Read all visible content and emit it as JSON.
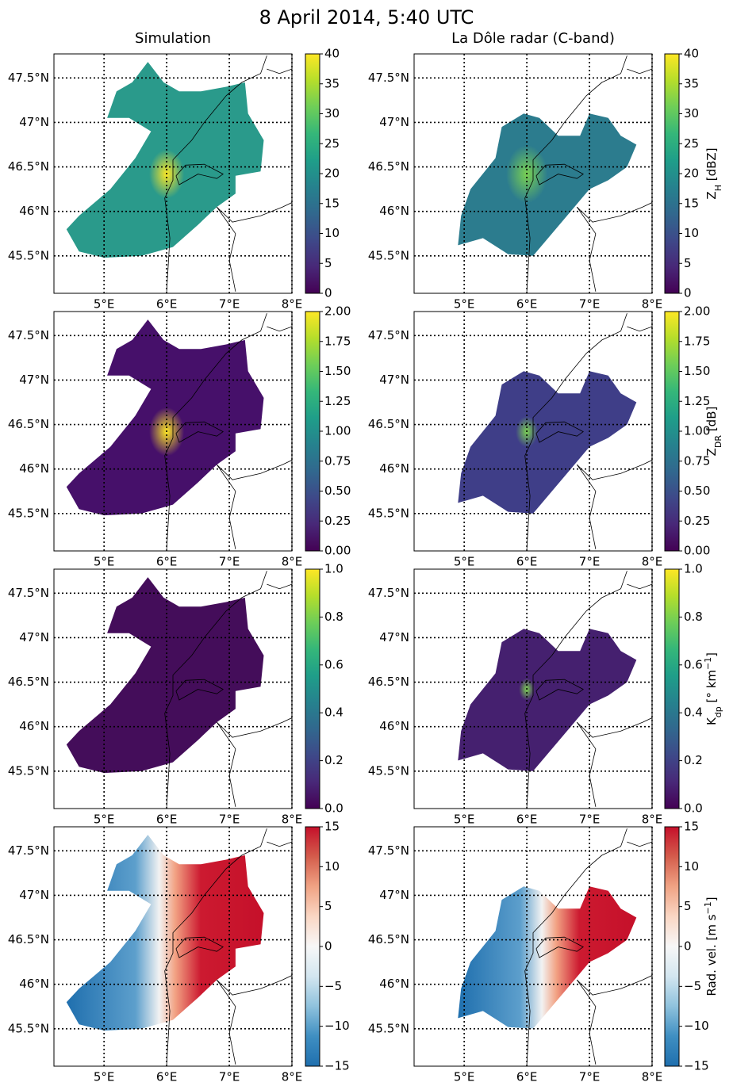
{
  "figure": {
    "title": "8 April 2014, 5:40 UTC"
  },
  "chart_data": [
    {
      "type": "map",
      "title": "Simulation",
      "xlim": [
        4.2,
        8.0
      ],
      "ylim": [
        45.08,
        47.77
      ],
      "grid": true,
      "xticks": [
        {
          "value": 5,
          "label": "5°E"
        },
        {
          "value": 6,
          "label": "6°E"
        },
        {
          "value": 7,
          "label": "7°E"
        },
        {
          "value": 8,
          "label": "8°E"
        }
      ],
      "yticks": [
        {
          "value": 45.5,
          "label": "45.5°N"
        },
        {
          "value": 46,
          "label": "46°N"
        },
        {
          "value": 46.5,
          "label": "46.5°N"
        },
        {
          "value": 47,
          "label": "47°N"
        },
        {
          "value": 47.5,
          "label": "47.5°N"
        }
      ],
      "colorbar": {
        "colormap": "viridis",
        "lim": [
          0,
          40
        ],
        "ticks": [
          0,
          5,
          10,
          15,
          20,
          25,
          30,
          35,
          40
        ]
      }
    },
    {
      "type": "map",
      "title": "La Dôle radar (C-band)",
      "xlim": [
        4.2,
        8.0
      ],
      "ylim": [
        45.08,
        47.77
      ],
      "grid": true,
      "xticks": [
        {
          "value": 5,
          "label": "5°E"
        },
        {
          "value": 6,
          "label": "6°E"
        },
        {
          "value": 7,
          "label": "7°E"
        },
        {
          "value": 8,
          "label": "8°E"
        }
      ],
      "yticks": [
        {
          "value": 45.5,
          "label": "45.5°N"
        },
        {
          "value": 46,
          "label": "46°N"
        },
        {
          "value": 46.5,
          "label": "46.5°N"
        },
        {
          "value": 47,
          "label": "47°N"
        },
        {
          "value": 47.5,
          "label": "47.5°N"
        }
      ],
      "colorbar": {
        "colormap": "viridis",
        "lim": [
          0,
          40
        ],
        "ticks": [
          0,
          5,
          10,
          15,
          20,
          25,
          30,
          35,
          40
        ],
        "label": [
          {
            "text": "Z"
          },
          {
            "text": "H",
            "sub": true
          },
          {
            "text": " [dBZ]"
          }
        ]
      }
    },
    {
      "type": "map",
      "xlim": [
        4.2,
        8.0
      ],
      "ylim": [
        45.08,
        47.77
      ],
      "grid": true,
      "xticks": [
        {
          "value": 5,
          "label": "5°E"
        },
        {
          "value": 6,
          "label": "6°E"
        },
        {
          "value": 7,
          "label": "7°E"
        },
        {
          "value": 8,
          "label": "8°E"
        }
      ],
      "yticks": [
        {
          "value": 45.5,
          "label": "45.5°N"
        },
        {
          "value": 46,
          "label": "46°N"
        },
        {
          "value": 46.5,
          "label": "46.5°N"
        },
        {
          "value": 47,
          "label": "47°N"
        },
        {
          "value": 47.5,
          "label": "47.5°N"
        }
      ],
      "colorbar": {
        "colormap": "viridis",
        "lim": [
          0,
          2
        ],
        "ticks": [
          {
            "value": 0,
            "label": "0.00"
          },
          {
            "value": 0.25,
            "label": "0.25"
          },
          {
            "value": 0.5,
            "label": "0.50"
          },
          {
            "value": 0.75,
            "label": "0.75"
          },
          {
            "value": 1,
            "label": "1.00"
          },
          {
            "value": 1.25,
            "label": "1.25"
          },
          {
            "value": 1.5,
            "label": "1.50"
          },
          {
            "value": 1.75,
            "label": "1.75"
          },
          {
            "value": 2,
            "label": "2.00"
          }
        ]
      }
    },
    {
      "type": "map",
      "xlim": [
        4.2,
        8.0
      ],
      "ylim": [
        45.08,
        47.77
      ],
      "grid": true,
      "xticks": [
        {
          "value": 5,
          "label": "5°E"
        },
        {
          "value": 6,
          "label": "6°E"
        },
        {
          "value": 7,
          "label": "7°E"
        },
        {
          "value": 8,
          "label": "8°E"
        }
      ],
      "yticks": [
        {
          "value": 45.5,
          "label": "45.5°N"
        },
        {
          "value": 46,
          "label": "46°N"
        },
        {
          "value": 46.5,
          "label": "46.5°N"
        },
        {
          "value": 47,
          "label": "47°N"
        },
        {
          "value": 47.5,
          "label": "47.5°N"
        }
      ],
      "colorbar": {
        "colormap": "viridis",
        "lim": [
          0,
          2
        ],
        "ticks": [
          {
            "value": 0,
            "label": "0.00"
          },
          {
            "value": 0.25,
            "label": "0.25"
          },
          {
            "value": 0.5,
            "label": "0.50"
          },
          {
            "value": 0.75,
            "label": "0.75"
          },
          {
            "value": 1,
            "label": "1.00"
          },
          {
            "value": 1.25,
            "label": "1.25"
          },
          {
            "value": 1.5,
            "label": "1.50"
          },
          {
            "value": 1.75,
            "label": "1.75"
          },
          {
            "value": 2,
            "label": "2.00"
          }
        ],
        "label": [
          {
            "text": "Z"
          },
          {
            "text": "DR",
            "sub": true
          },
          {
            "text": " [dB]"
          }
        ]
      }
    },
    {
      "type": "map",
      "xlim": [
        4.2,
        8.0
      ],
      "ylim": [
        45.08,
        47.77
      ],
      "grid": true,
      "xticks": [
        {
          "value": 5,
          "label": "5°E"
        },
        {
          "value": 6,
          "label": "6°E"
        },
        {
          "value": 7,
          "label": "7°E"
        },
        {
          "value": 8,
          "label": "8°E"
        }
      ],
      "yticks": [
        {
          "value": 45.5,
          "label": "45.5°N"
        },
        {
          "value": 46,
          "label": "46°N"
        },
        {
          "value": 46.5,
          "label": "46.5°N"
        },
        {
          "value": 47,
          "label": "47°N"
        },
        {
          "value": 47.5,
          "label": "47.5°N"
        }
      ],
      "colorbar": {
        "colormap": "viridis",
        "lim": [
          0,
          1
        ],
        "ticks": [
          {
            "value": 0,
            "label": "0.0"
          },
          0.2,
          0.4,
          0.6,
          0.8,
          {
            "value": 1,
            "label": "1.0"
          }
        ]
      }
    },
    {
      "type": "map",
      "xlim": [
        4.2,
        8.0
      ],
      "ylim": [
        45.08,
        47.77
      ],
      "grid": true,
      "xticks": [
        {
          "value": 5,
          "label": "5°E"
        },
        {
          "value": 6,
          "label": "6°E"
        },
        {
          "value": 7,
          "label": "7°E"
        },
        {
          "value": 8,
          "label": "8°E"
        }
      ],
      "yticks": [
        {
          "value": 45.5,
          "label": "45.5°N"
        },
        {
          "value": 46,
          "label": "46°N"
        },
        {
          "value": 46.5,
          "label": "46.5°N"
        },
        {
          "value": 47,
          "label": "47°N"
        },
        {
          "value": 47.5,
          "label": "47.5°N"
        }
      ],
      "colorbar": {
        "colormap": "viridis",
        "lim": [
          0,
          1
        ],
        "ticks": [
          {
            "value": 0,
            "label": "0.0"
          },
          0.2,
          0.4,
          0.6,
          0.8,
          {
            "value": 1,
            "label": "1.0"
          }
        ],
        "label": [
          {
            "text": "K"
          },
          {
            "text": "dp",
            "sub": true
          },
          {
            "text": " [° km"
          },
          {
            "text": "−1",
            "sup": true
          },
          {
            "text": "]"
          }
        ]
      }
    },
    {
      "type": "map",
      "xlim": [
        4.2,
        8.0
      ],
      "ylim": [
        45.08,
        47.77
      ],
      "grid": true,
      "xticks": [
        {
          "value": 5,
          "label": "5°E"
        },
        {
          "value": 6,
          "label": "6°E"
        },
        {
          "value": 7,
          "label": "7°E"
        },
        {
          "value": 8,
          "label": "8°E"
        }
      ],
      "yticks": [
        {
          "value": 45.5,
          "label": "45.5°N"
        },
        {
          "value": 46,
          "label": "46°N"
        },
        {
          "value": 46.5,
          "label": "46.5°N"
        },
        {
          "value": 47,
          "label": "47°N"
        },
        {
          "value": 47.5,
          "label": "47.5°N"
        }
      ],
      "colorbar": {
        "colormap": "RdBu_r",
        "lim": [
          -15,
          15
        ],
        "ticks": [
          {
            "value": -15,
            "label": "−15"
          },
          {
            "value": -10,
            "label": "−10"
          },
          {
            "value": -5,
            "label": "−5"
          },
          0,
          5,
          10,
          15
        ]
      }
    },
    {
      "type": "map",
      "xlim": [
        4.2,
        8.0
      ],
      "ylim": [
        45.08,
        47.77
      ],
      "grid": true,
      "xticks": [
        {
          "value": 5,
          "label": "5°E"
        },
        {
          "value": 6,
          "label": "6°E"
        },
        {
          "value": 7,
          "label": "7°E"
        },
        {
          "value": 8,
          "label": "8°E"
        }
      ],
      "yticks": [
        {
          "value": 45.5,
          "label": "45.5°N"
        },
        {
          "value": 46,
          "label": "46°N"
        },
        {
          "value": 46.5,
          "label": "46.5°N"
        },
        {
          "value": 47,
          "label": "47°N"
        },
        {
          "value": 47.5,
          "label": "47.5°N"
        }
      ],
      "colorbar": {
        "colormap": "RdBu_r",
        "lim": [
          -15,
          15
        ],
        "ticks": [
          {
            "value": -15,
            "label": "−15"
          },
          {
            "value": -10,
            "label": "−10"
          },
          {
            "value": -5,
            "label": "−5"
          },
          0,
          5,
          10,
          15
        ],
        "label": [
          {
            "text": "Rad. vel. [m s"
          },
          {
            "text": "−1",
            "sup": true
          },
          {
            "text": "]"
          }
        ]
      }
    }
  ]
}
